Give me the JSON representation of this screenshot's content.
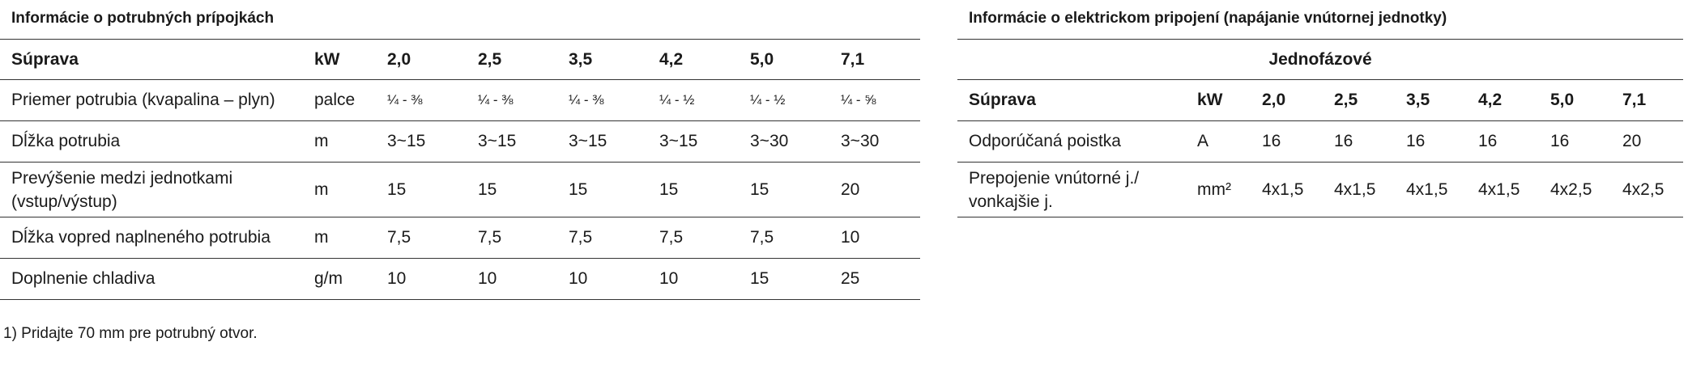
{
  "pipe_section": {
    "title": "Informácie o potrubných prípojkách",
    "headers": [
      "Súprava",
      "kW",
      "2,0",
      "2,5",
      "3,5",
      "4,2",
      "5,0",
      "7,1"
    ],
    "rows": [
      {
        "label": "Priemer potrubia (kvapalina – plyn)",
        "unit": "palce",
        "values": [
          "¼ - ⅜",
          "¼ - ⅜",
          "¼ - ⅜",
          "¼ - ½",
          "¼ - ½",
          "¼ - ⅝"
        ]
      },
      {
        "label": "Dĺžka potrubia",
        "unit": "m",
        "values": [
          "3~15",
          "3~15",
          "3~15",
          "3~15",
          "3~30",
          "3~30"
        ]
      },
      {
        "label_line1": "Prevýšenie medzi jednotkami",
        "label_line2": "(vstup/výstup)",
        "unit": "m",
        "values": [
          "15",
          "15",
          "15",
          "15",
          "15",
          "20"
        ]
      },
      {
        "label": "Dĺžka vopred naplneného potrubia",
        "unit": "m",
        "values": [
          "7,5",
          "7,5",
          "7,5",
          "7,5",
          "7,5",
          "10"
        ]
      },
      {
        "label": "Doplnenie chladiva",
        "unit": "g/m",
        "values": [
          "10",
          "10",
          "10",
          "10",
          "15",
          "25"
        ]
      }
    ],
    "footnote": "1) Pridajte 70 mm pre potrubný otvor."
  },
  "electric_section": {
    "title": "Informácie o elektrickom pripojení (napájanie vnútornej jednotky)",
    "group_header": "Jednofázové",
    "headers": [
      "Súprava",
      "kW",
      "2,0",
      "2,5",
      "3,5",
      "4,2",
      "5,0",
      "7,1"
    ],
    "rows": [
      {
        "label": "Odporúčaná poistka",
        "unit": "A",
        "values": [
          "16",
          "16",
          "16",
          "16",
          "16",
          "20"
        ]
      },
      {
        "label_line1": "Prepojenie vnútorné j./",
        "label_line2": "vonkajšie j.",
        "unit": "mm²",
        "values": [
          "4x1,5",
          "4x1,5",
          "4x1,5",
          "4x1,5",
          "4x2,5",
          "4x2,5"
        ]
      }
    ]
  }
}
